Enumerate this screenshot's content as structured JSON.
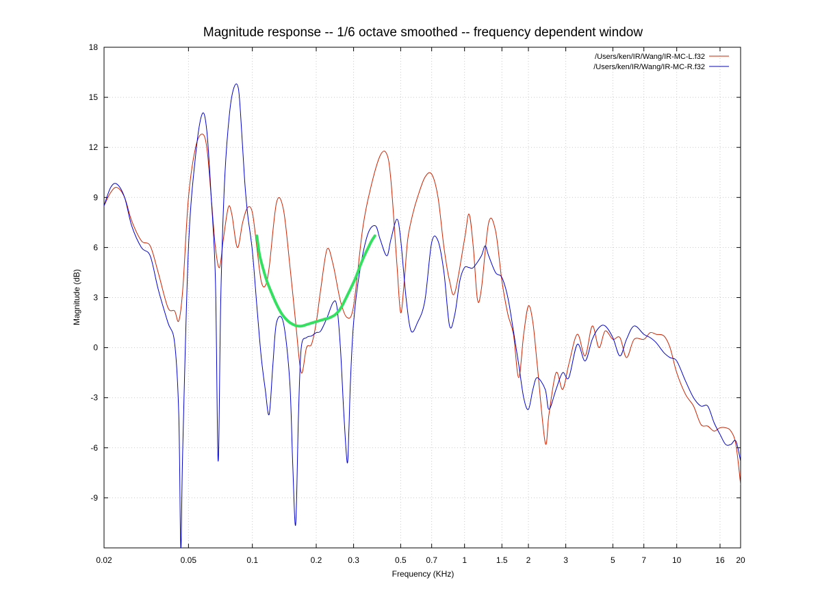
{
  "chart_data": {
    "type": "line",
    "title": "Magnitude response -- 1/6 octave smoothed -- frequency dependent window",
    "xlabel": "Frequency (KHz)",
    "ylabel": "Magnitude (dB)",
    "x_scale": "log",
    "xlim": [
      0.02,
      20
    ],
    "ylim": [
      -12,
      18
    ],
    "x_ticks": [
      {
        "value": 0.02,
        "label": "0.02"
      },
      {
        "value": 0.05,
        "label": "0.05"
      },
      {
        "value": 0.1,
        "label": "0.1"
      },
      {
        "value": 0.2,
        "label": "0.2"
      },
      {
        "value": 0.3,
        "label": "0.3"
      },
      {
        "value": 0.5,
        "label": "0.5"
      },
      {
        "value": 0.7,
        "label": "0.7"
      },
      {
        "value": 1,
        "label": "1"
      },
      {
        "value": 1.5,
        "label": "1.5"
      },
      {
        "value": 2,
        "label": "2"
      },
      {
        "value": 3,
        "label": "3"
      },
      {
        "value": 5,
        "label": "5"
      },
      {
        "value": 7,
        "label": "7"
      },
      {
        "value": 10,
        "label": "10"
      },
      {
        "value": 16,
        "label": "16"
      },
      {
        "value": 20,
        "label": "20"
      }
    ],
    "y_ticks": [
      {
        "value": 18,
        "label": "18"
      },
      {
        "value": 15,
        "label": "15"
      },
      {
        "value": 12,
        "label": "12"
      },
      {
        "value": 9,
        "label": "9"
      },
      {
        "value": 6,
        "label": "6"
      },
      {
        "value": 3,
        "label": "3"
      },
      {
        "value": 0,
        "label": "0"
      },
      {
        "value": -3,
        "label": "-3"
      },
      {
        "value": -6,
        "label": "-6"
      },
      {
        "value": -9,
        "label": "-9"
      }
    ],
    "grid": true,
    "legend_position": "top-right",
    "series": [
      {
        "name": "/Users/ken/IR/Wang/IR-MC-L.f32",
        "color": "#cc2200",
        "x": [
          0.02,
          0.0215,
          0.023,
          0.025,
          0.027,
          0.03,
          0.033,
          0.036,
          0.04,
          0.043,
          0.045,
          0.047,
          0.05,
          0.054,
          0.058,
          0.061,
          0.064,
          0.067,
          0.07,
          0.073,
          0.077,
          0.08,
          0.085,
          0.09,
          0.095,
          0.1,
          0.105,
          0.11,
          0.115,
          0.12,
          0.13,
          0.14,
          0.15,
          0.16,
          0.17,
          0.18,
          0.19,
          0.2,
          0.21,
          0.225,
          0.24,
          0.26,
          0.28,
          0.3,
          0.33,
          0.36,
          0.4,
          0.43,
          0.45,
          0.48,
          0.5,
          0.52,
          0.54,
          0.57,
          0.6,
          0.65,
          0.7,
          0.75,
          0.8,
          0.85,
          0.9,
          1.0,
          1.05,
          1.1,
          1.15,
          1.2,
          1.3,
          1.4,
          1.5,
          1.6,
          1.7,
          1.8,
          1.9,
          2.0,
          2.1,
          2.2,
          2.4,
          2.5,
          2.7,
          2.9,
          3.1,
          3.4,
          3.7,
          4.0,
          4.3,
          4.6,
          5.0,
          5.4,
          5.8,
          6.3,
          7.0,
          7.5,
          8.0,
          8.7,
          9.3,
          10,
          11,
          12,
          13,
          14,
          15,
          16,
          17,
          18,
          19,
          20
        ],
        "values": [
          8.5,
          9.3,
          9.6,
          9.0,
          7.6,
          6.4,
          6.1,
          4.5,
          2.4,
          2.2,
          1.6,
          3.5,
          9.0,
          12.0,
          12.8,
          12.0,
          9.0,
          6.0,
          4.8,
          6.5,
          8.4,
          8.0,
          6.0,
          7.5,
          8.4,
          8.1,
          6.0,
          4.0,
          3.7,
          4.8,
          8.7,
          8.3,
          5.0,
          1.5,
          -1.5,
          0.0,
          0.2,
          1.5,
          3.5,
          5.9,
          5.0,
          2.8,
          1.8,
          2.5,
          7.0,
          9.5,
          11.5,
          11.6,
          10.0,
          5.0,
          2.1,
          4.0,
          6.5,
          8.0,
          9.0,
          10.2,
          10.4,
          9.0,
          6.0,
          4.0,
          3.3,
          6.5,
          8.0,
          6.0,
          2.9,
          3.5,
          7.5,
          7.0,
          4.0,
          2.0,
          0.8,
          -1.8,
          0.8,
          2.5,
          1.5,
          -1.0,
          -5.7,
          -4.0,
          -1.5,
          -2.5,
          -1.0,
          0.8,
          -0.5,
          1.3,
          0.0,
          1.0,
          0.5,
          0.6,
          -0.6,
          0.5,
          0.5,
          0.9,
          0.8,
          0.7,
          0.0,
          -1.5,
          -2.8,
          -3.5,
          -4.6,
          -4.7,
          -5.0,
          -4.8,
          -4.8,
          -5.0,
          -5.8,
          -8.2
        ]
      },
      {
        "name": "/Users/ken/IR/Wang/IR-MC-R.f32",
        "color": "#0000cc",
        "x": [
          0.02,
          0.0215,
          0.023,
          0.025,
          0.027,
          0.03,
          0.033,
          0.036,
          0.04,
          0.043,
          0.045,
          0.046,
          0.047,
          0.05,
          0.054,
          0.058,
          0.061,
          0.064,
          0.067,
          0.069,
          0.071,
          0.074,
          0.078,
          0.082,
          0.086,
          0.089,
          0.092,
          0.095,
          0.1,
          0.105,
          0.11,
          0.115,
          0.12,
          0.125,
          0.13,
          0.14,
          0.15,
          0.155,
          0.16,
          0.165,
          0.17,
          0.18,
          0.19,
          0.2,
          0.21,
          0.225,
          0.24,
          0.25,
          0.26,
          0.27,
          0.28,
          0.285,
          0.29,
          0.3,
          0.32,
          0.35,
          0.38,
          0.4,
          0.43,
          0.45,
          0.48,
          0.5,
          0.53,
          0.56,
          0.6,
          0.65,
          0.7,
          0.75,
          0.8,
          0.85,
          0.9,
          0.95,
          1.0,
          1.05,
          1.1,
          1.2,
          1.25,
          1.3,
          1.4,
          1.5,
          1.6,
          1.7,
          1.8,
          1.9,
          2.0,
          2.1,
          2.2,
          2.4,
          2.5,
          2.7,
          2.9,
          3.1,
          3.4,
          3.7,
          4.0,
          4.3,
          4.6,
          5.0,
          5.4,
          5.8,
          6.3,
          7.0,
          7.5,
          8.0,
          8.7,
          9.3,
          10,
          11,
          12,
          13,
          14,
          15,
          16,
          17,
          18,
          19,
          20
        ],
        "values": [
          8.5,
          9.6,
          9.8,
          9.0,
          7.3,
          6.0,
          5.5,
          3.5,
          1.5,
          0.3,
          -4.0,
          -12.0,
          -6.0,
          6.0,
          11.5,
          14.0,
          13.0,
          9.0,
          4.0,
          -6.8,
          3.0,
          10.0,
          14.0,
          15.6,
          15.5,
          13.0,
          10.0,
          8.0,
          5.8,
          2.5,
          -0.5,
          -2.5,
          -4.0,
          -1.0,
          1.5,
          1.5,
          -2.0,
          -7.0,
          -10.6,
          -4.0,
          0.0,
          0.6,
          0.7,
          0.9,
          1.0,
          1.8,
          2.7,
          2.5,
          0.0,
          -4.0,
          -6.9,
          -5.0,
          -2.0,
          1.5,
          4.5,
          6.8,
          7.3,
          6.5,
          5.5,
          6.5,
          7.7,
          6.5,
          3.0,
          1.0,
          1.5,
          2.8,
          6.3,
          6.4,
          4.5,
          1.3,
          2.0,
          4.0,
          4.8,
          4.8,
          4.8,
          5.5,
          6.1,
          5.5,
          4.5,
          4.2,
          3.0,
          1.0,
          -1.0,
          -3.0,
          -3.7,
          -2.5,
          -1.8,
          -2.5,
          -3.7,
          -2.5,
          -1.5,
          -1.8,
          0.2,
          -0.8,
          0.5,
          1.2,
          1.3,
          0.6,
          -0.5,
          0.5,
          1.3,
          0.8,
          0.6,
          0.3,
          -0.3,
          -0.6,
          -0.8,
          -2.0,
          -3.0,
          -3.5,
          -3.5,
          -4.5,
          -5.2,
          -5.8,
          -5.8,
          -5.6,
          -6.8
        ]
      },
      {
        "color": "#33e060",
        "x": [
          0.105,
          0.108,
          0.112,
          0.117,
          0.123,
          0.13,
          0.138,
          0.147,
          0.155,
          0.163,
          0.172,
          0.182,
          0.193,
          0.205,
          0.218,
          0.232,
          0.247,
          0.262,
          0.277,
          0.292,
          0.307,
          0.322,
          0.337,
          0.352,
          0.365,
          0.378
        ],
        "values": [
          6.7,
          5.6,
          4.8,
          4.0,
          3.3,
          2.6,
          2.0,
          1.6,
          1.4,
          1.3,
          1.3,
          1.4,
          1.5,
          1.6,
          1.7,
          1.8,
          2.0,
          2.4,
          3.0,
          3.6,
          4.2,
          4.9,
          5.5,
          6.0,
          6.4,
          6.7
        ]
      }
    ]
  }
}
